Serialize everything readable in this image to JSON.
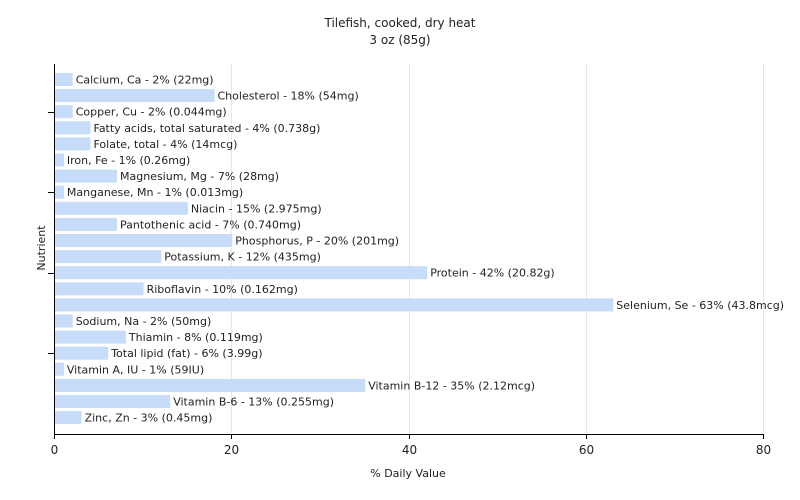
{
  "chart_data": {
    "type": "bar",
    "orientation": "horizontal",
    "title": "Tilefish, cooked, dry heat",
    "subtitle": "3 oz (85g)",
    "xlabel": "% Daily Value",
    "ylabel": "Nutrient",
    "xlim": [
      0,
      80
    ],
    "xticks": [
      0,
      20,
      40,
      60,
      80
    ],
    "grid": true,
    "bar_color": "#c6dcf8",
    "categories": [
      "Calcium, Ca",
      "Cholesterol",
      "Copper, Cu",
      "Fatty acids, total saturated",
      "Folate, total",
      "Iron, Fe",
      "Magnesium, Mg",
      "Manganese, Mn",
      "Niacin",
      "Pantothenic acid",
      "Phosphorus, P",
      "Potassium, K",
      "Protein",
      "Riboflavin",
      "Selenium, Se",
      "Sodium, Na",
      "Thiamin",
      "Total lipid (fat)",
      "Vitamin A, IU",
      "Vitamin B-12",
      "Vitamin B-6",
      "Zinc, Zn"
    ],
    "values": [
      2,
      18,
      2,
      4,
      4,
      1,
      7,
      1,
      15,
      7,
      20,
      12,
      42,
      10,
      63,
      2,
      8,
      6,
      1,
      35,
      13,
      3
    ],
    "labels": [
      "Calcium, Ca - 2% (22mg)",
      "Cholesterol - 18% (54mg)",
      "Copper, Cu - 2% (0.044mg)",
      "Fatty acids, total saturated - 4% (0.738g)",
      "Folate, total - 4% (14mcg)",
      "Iron, Fe - 1% (0.26mg)",
      "Magnesium, Mg - 7% (28mg)",
      "Manganese, Mn - 1% (0.013mg)",
      "Niacin - 15% (2.975mg)",
      "Pantothenic acid - 7% (0.740mg)",
      "Phosphorus, P - 20% (201mg)",
      "Potassium, K - 12% (435mg)",
      "Protein - 42% (20.82g)",
      "Riboflavin - 10% (0.162mg)",
      "Selenium, Se - 63% (43.8mcg)",
      "Sodium, Na - 2% (50mg)",
      "Thiamin - 8% (0.119mg)",
      "Total lipid (fat) - 6% (3.99g)",
      "Vitamin A, IU - 1% (59IU)",
      "Vitamin B-12 - 35% (2.12mcg)",
      "Vitamin B-6 - 13% (0.255mg)",
      "Zinc, Zn - 3% (0.45mg)"
    ]
  }
}
